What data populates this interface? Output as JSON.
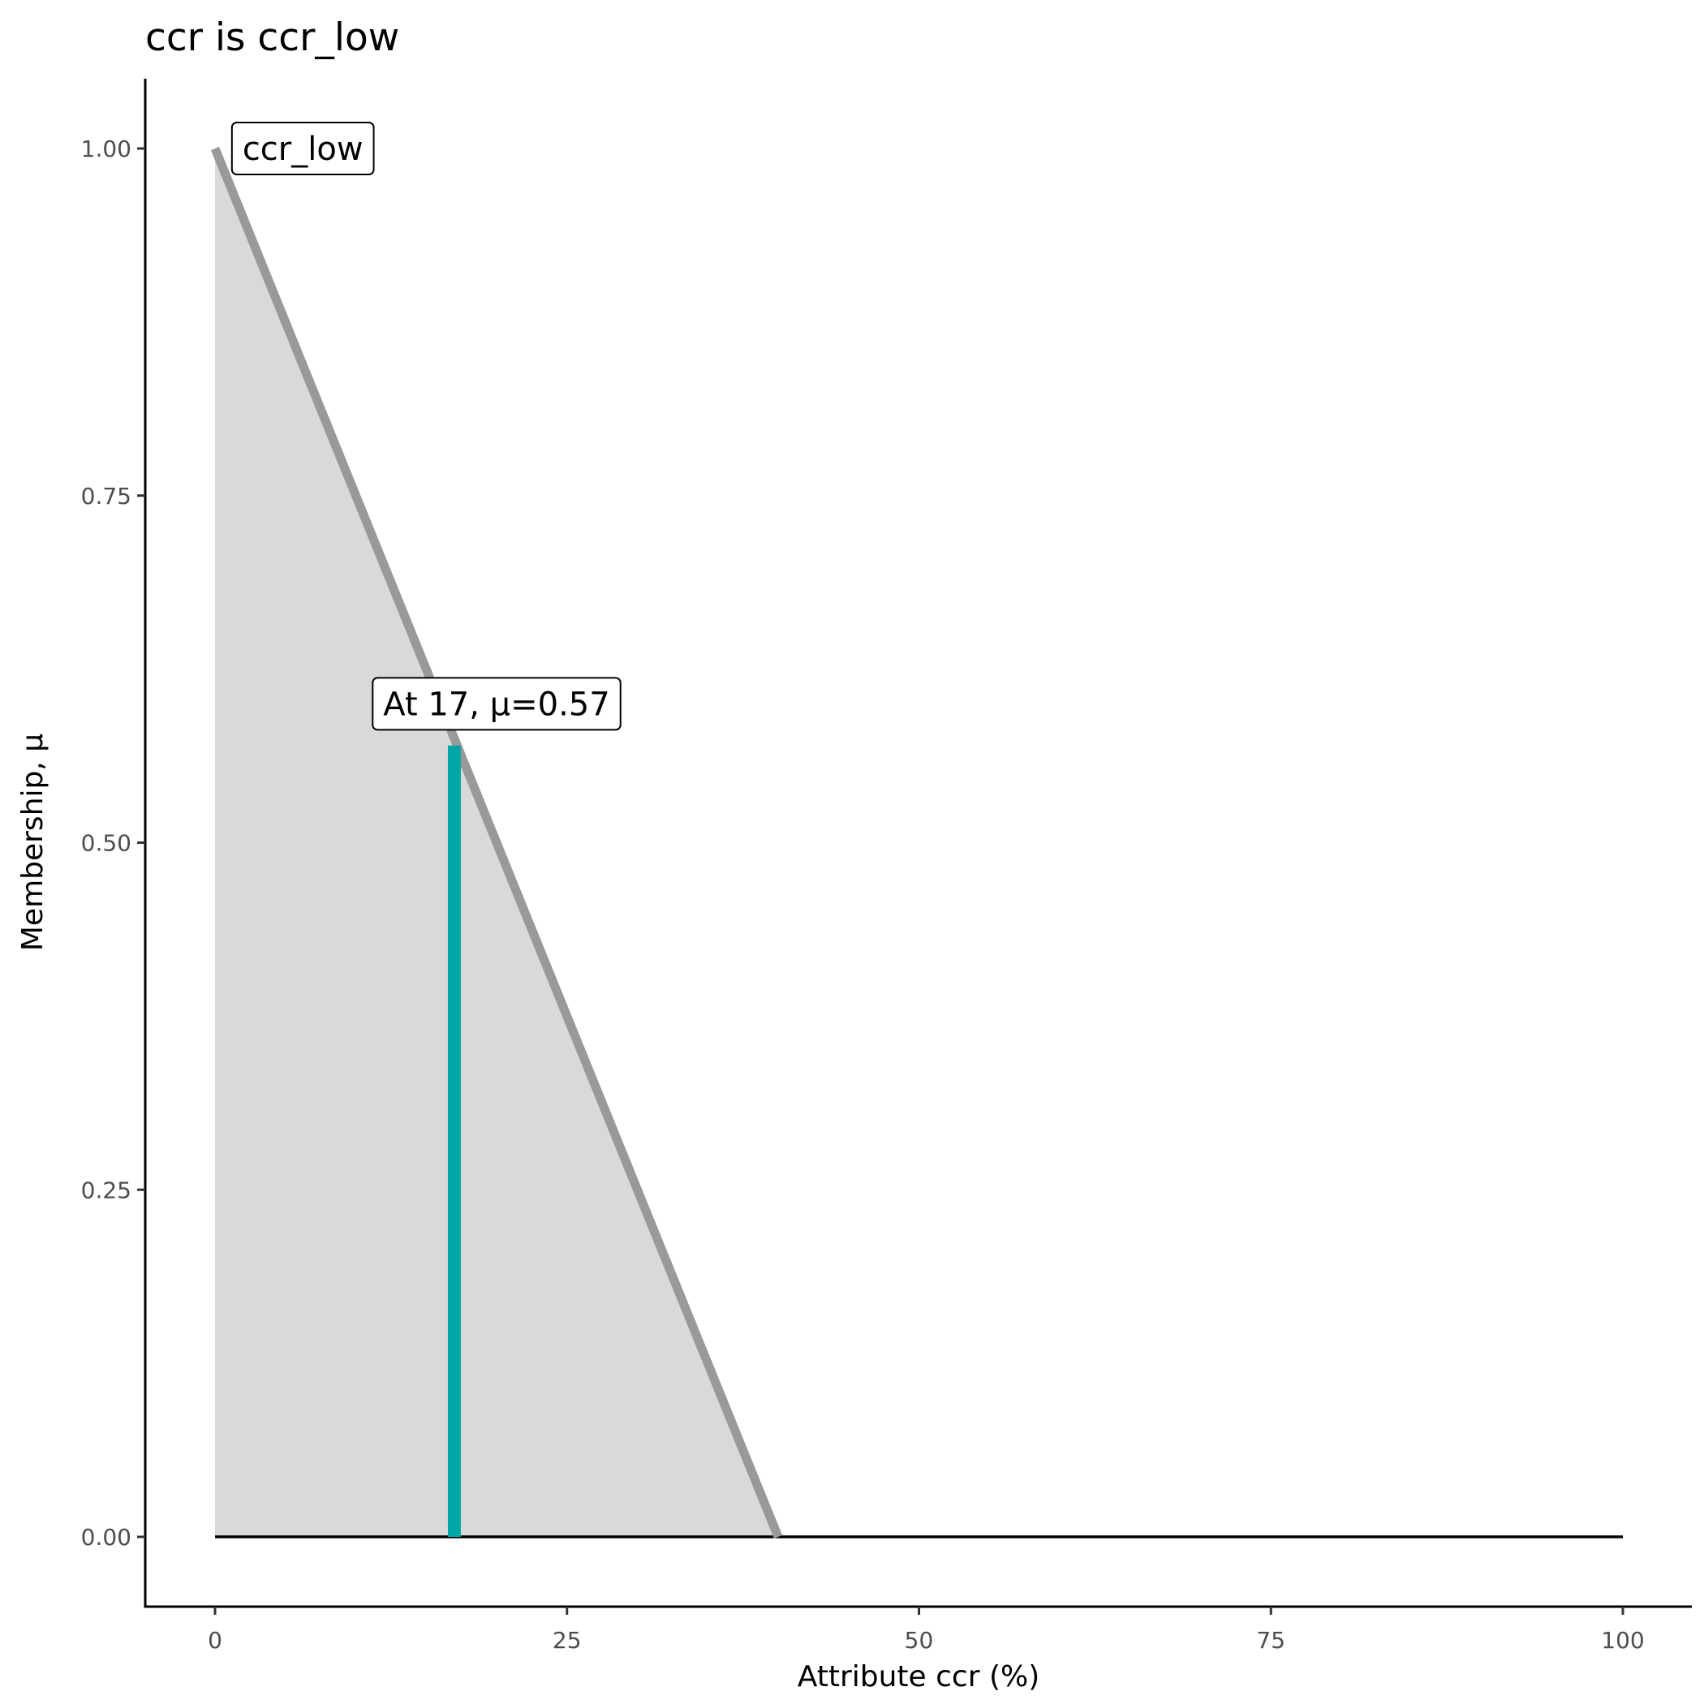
{
  "chart_data": {
    "type": "area",
    "title": "ccr is ccr_low",
    "xlabel": "Attribute ccr (%)",
    "ylabel": "Membership, μ",
    "xlim": [
      -5,
      105
    ],
    "ylim": [
      -0.05,
      1.05
    ],
    "x_ticks": [
      0,
      25,
      50,
      75,
      100
    ],
    "x_tick_labels": [
      "0",
      "25",
      "50",
      "75",
      "100"
    ],
    "y_ticks": [
      0,
      0.25,
      0.5,
      0.75,
      1
    ],
    "y_tick_labels": [
      "0.00",
      "0.25",
      "0.50",
      "0.75",
      "1.00"
    ],
    "grid": false,
    "membership": {
      "name": "ccr_low",
      "x": [
        0,
        40,
        100
      ],
      "y": [
        1,
        0,
        0
      ],
      "line_color": "#999999",
      "fill_color": "#d9d9d9"
    },
    "baseline": {
      "x": [
        0,
        100
      ],
      "y": [
        0,
        0
      ],
      "color": "#000000"
    },
    "marker": {
      "x": 17,
      "y": 0.57,
      "color": "#00a6a6"
    },
    "annotations": [
      {
        "text": "ccr_low",
        "x": 1.2,
        "y": 1.0,
        "anchor": "left"
      },
      {
        "text": "At 17, μ=0.57",
        "x": 20,
        "y": 0.6,
        "anchor": "center"
      }
    ]
  }
}
